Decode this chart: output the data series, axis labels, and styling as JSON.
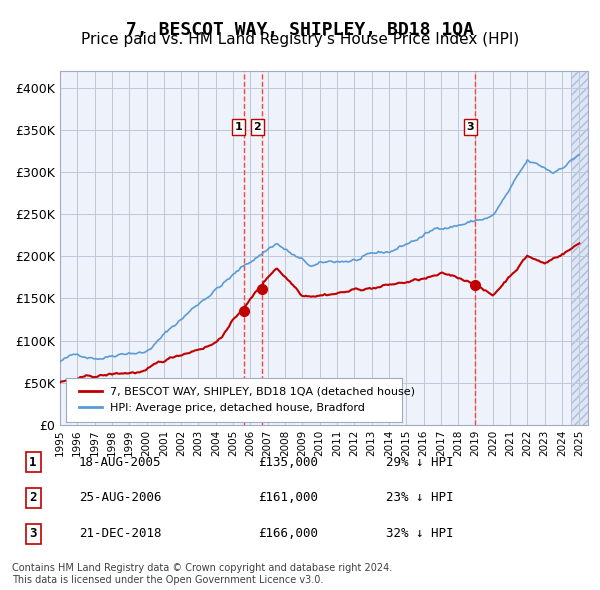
{
  "title": "7, BESCOT WAY, SHIPLEY, BD18 1QA",
  "subtitle": "Price paid vs. HM Land Registry's House Price Index (HPI)",
  "title_fontsize": 13,
  "subtitle_fontsize": 11,
  "ylabel": "",
  "ylim": [
    0,
    420000
  ],
  "yticks": [
    0,
    50000,
    100000,
    150000,
    200000,
    250000,
    300000,
    350000,
    400000
  ],
  "ytick_labels": [
    "£0",
    "£50K",
    "£100K",
    "£150K",
    "£200K",
    "£250K",
    "£300K",
    "£350K",
    "£400K"
  ],
  "xlim_start": 1995.0,
  "xlim_end": 2025.5,
  "hpi_color": "#5b9bd5",
  "price_color": "#c00000",
  "transaction_color": "#c00000",
  "vline_color": "#ff4444",
  "grid_color": "#c0c8d8",
  "bg_color": "#eef2fa",
  "future_bg_color": "#dce6f5",
  "transactions": [
    {
      "date": 2005.635,
      "price": 135000,
      "label": "1",
      "x_label": 2005.6
    },
    {
      "date": 2006.648,
      "price": 161000,
      "label": "2",
      "x_label": 2006.65
    },
    {
      "date": 2018.975,
      "price": 166000,
      "label": "3",
      "x_label": 2018.975
    }
  ],
  "table_rows": [
    {
      "num": "1",
      "date": "18-AUG-2005",
      "price": "£135,000",
      "note": "29% ↓ HPI"
    },
    {
      "num": "2",
      "date": "25-AUG-2006",
      "price": "£161,000",
      "note": "23% ↓ HPI"
    },
    {
      "num": "3",
      "date": "21-DEC-2018",
      "price": "£166,000",
      "note": "32% ↓ HPI"
    }
  ],
  "footer": "Contains HM Land Registry data © Crown copyright and database right 2024.\nThis data is licensed under the Open Government Licence v3.0.",
  "legend_red_label": "7, BESCOT WAY, SHIPLEY, BD18 1QA (detached house)",
  "legend_blue_label": "HPI: Average price, detached house, Bradford"
}
